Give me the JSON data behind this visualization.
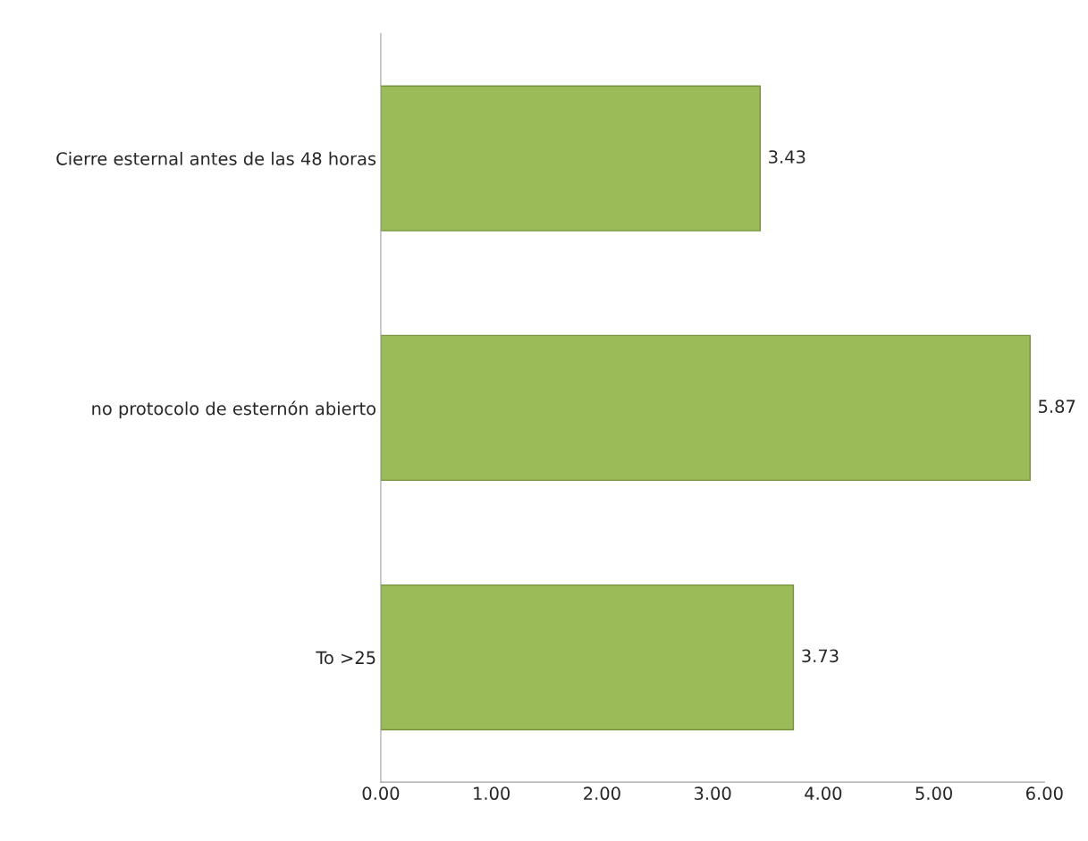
{
  "chart_data": {
    "type": "bar",
    "orientation": "horizontal",
    "categories": [
      "Cierre esternal antes de las 48 horas",
      "no protocolo de esternón abierto",
      "To >25"
    ],
    "values": [
      3.43,
      5.87,
      3.73
    ],
    "color": "#9bbb59",
    "xlim": [
      0,
      6
    ],
    "xticks": [
      {
        "value": 0,
        "label": "0.00"
      },
      {
        "value": 1,
        "label": "1.00"
      },
      {
        "value": 2,
        "label": "2.00"
      },
      {
        "value": 3,
        "label": "3.00"
      },
      {
        "value": 4,
        "label": "4.00"
      },
      {
        "value": 5,
        "label": "5.00"
      },
      {
        "value": 6,
        "label": "6.00"
      }
    ],
    "data_labels": true,
    "grid": false,
    "legend": false
  }
}
